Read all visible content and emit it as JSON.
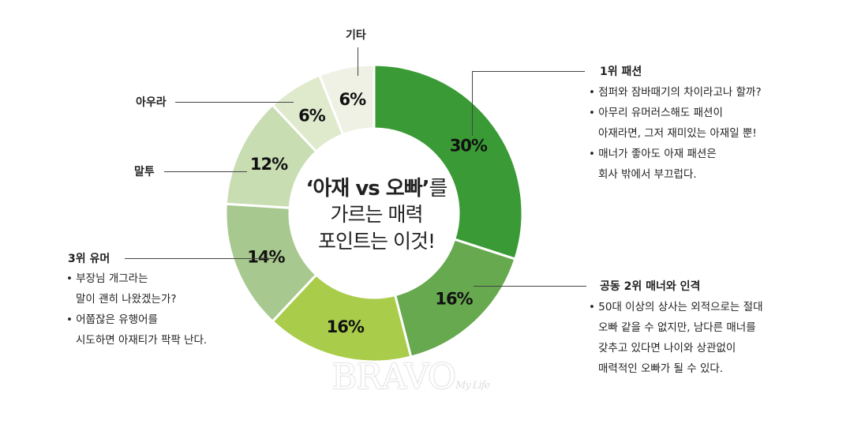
{
  "chart_data": {
    "type": "pie",
    "style": "donut",
    "slices": [
      {
        "value": 30,
        "label": "30%",
        "color": "#3a9a35"
      },
      {
        "value": 16,
        "label": "16%",
        "color": "#66a94e"
      },
      {
        "value": 16,
        "label": "16%",
        "color": "#a9cc4a"
      },
      {
        "value": 14,
        "label": "14%",
        "color": "#a7c88e"
      },
      {
        "value": 12,
        "label": "12%",
        "color": "#c8ddb2"
      },
      {
        "value": 6,
        "label": "6%",
        "color": "#dfeacd"
      },
      {
        "value": 6,
        "label": "6%",
        "color": "#eef1e4"
      }
    ]
  },
  "center": {
    "line1_a": "‘아재 vs 오빠’",
    "line1_b": "를",
    "line2": "가르는 매력",
    "line3": "포인트는 이것!"
  },
  "categories": {
    "fashion": "1위 패션",
    "manner": "공동 2위 매너와 인격",
    "humor": "3위 유머",
    "speech": "말투",
    "aura": "아우라",
    "etc": "기타"
  },
  "notes": {
    "fashion": [
      {
        "lines": [
          "점퍼와 잠바때기의 차이라고나 할까?"
        ]
      },
      {
        "lines": [
          "아무리 유머러스해도 패션이",
          "아재라면, 그저 재미있는 아재일 뿐!"
        ]
      },
      {
        "lines": [
          "매너가 좋아도 아재 패션은",
          "회사 밖에서 부끄럽다."
        ]
      }
    ],
    "manner": [
      {
        "lines": [
          "50대 이상의 상사는 외적으로는 절대",
          "오빠 같을 수 없지만, 남다른 매너를",
          "갖추고 있다면 나이와 상관없이",
          "매력적인 오빠가 될 수 있다."
        ]
      }
    ],
    "humor": [
      {
        "lines": [
          "부장님 개그라는",
          "말이 괜히 나왔겠는가?"
        ]
      },
      {
        "lines": [
          "어쭙잖은 유행어를",
          "시도하면 아재티가 팍팍 난다."
        ]
      }
    ]
  },
  "watermark": {
    "main": "BRAVO",
    "sub": "My Life"
  }
}
